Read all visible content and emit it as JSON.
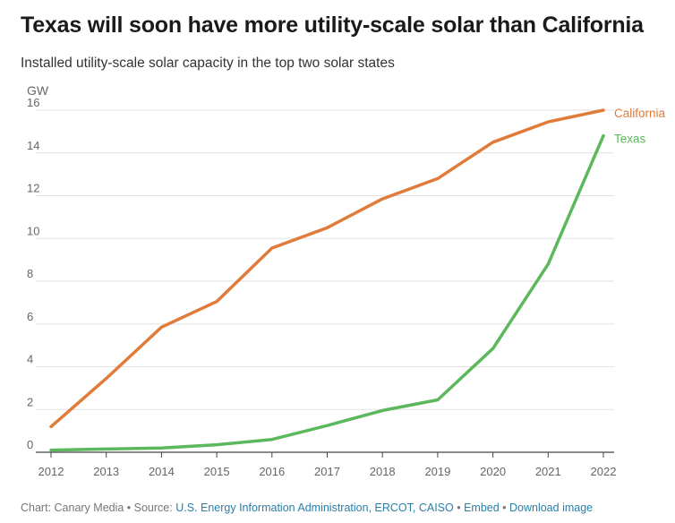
{
  "title": "Texas will soon have more utility-scale solar than California",
  "subtitle": "Installed utility-scale solar capacity in the top two solar states",
  "chart_data": {
    "type": "line",
    "ylabel": "GW",
    "x": [
      "2012",
      "2013",
      "2014",
      "2015",
      "2016",
      "2017",
      "2018",
      "2019",
      "2020",
      "2021",
      "2022"
    ],
    "ylim": [
      0,
      16
    ],
    "yticks": [
      0,
      2,
      4,
      6,
      8,
      10,
      12,
      14,
      16
    ],
    "grid": true,
    "series": [
      {
        "name": "California",
        "color": "#e07b39",
        "values": [
          1.2,
          3.45,
          5.85,
          7.05,
          9.55,
          10.5,
          11.85,
          12.8,
          14.5,
          15.45,
          16.0
        ]
      },
      {
        "name": "Texas",
        "color": "#5cb85c",
        "values": [
          0.1,
          0.15,
          0.2,
          0.35,
          0.6,
          1.25,
          1.95,
          2.45,
          4.85,
          8.8,
          14.8
        ]
      }
    ]
  },
  "footer": {
    "prefix": "Chart: Canary Media • Source: ",
    "source": "U.S. Energy Information Administration, ERCOT, CAISO",
    "sep1": " • ",
    "embed": "Embed",
    "sep2": " • ",
    "download": "Download image"
  }
}
